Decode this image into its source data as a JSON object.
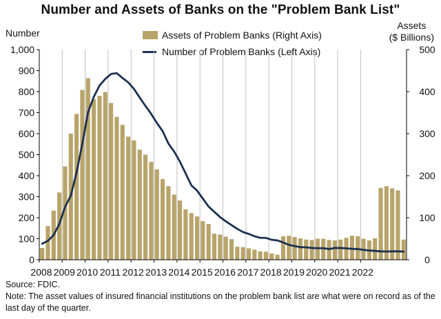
{
  "title": "Number and Assets of Banks on the \"Problem Bank List\"",
  "source": "Source: FDIC.",
  "note": "Note: The asset values of insured financial institutions on the problem bank list are what were on record as of the last day of the quarter.",
  "colors": {
    "bars": "#B8A46A",
    "line": "#1C2F4E",
    "grid": "#BFBFBF",
    "axis": "#000000"
  },
  "chart_data": {
    "type": "bar+line",
    "title": "Number and Assets of Banks on the \"Problem Bank List\"",
    "y_left": {
      "label": "Number",
      "lim": [
        0,
        1000
      ],
      "ticks": [
        "0",
        "100",
        "200",
        "300",
        "400",
        "500",
        "600",
        "700",
        "800",
        "900",
        "1,000"
      ]
    },
    "y_right": {
      "label_line1": "Assets",
      "label_line2": "($ Billions)",
      "lim": [
        0,
        500
      ],
      "ticks": [
        "0",
        "100",
        "200",
        "300",
        "400",
        "500"
      ]
    },
    "x_ticks": [
      "2008",
      "2009",
      "2010",
      "2011",
      "2012",
      "2013",
      "2014",
      "2015",
      "2016",
      "2017",
      "2018",
      "2019",
      "2020",
      "2021",
      "2022"
    ],
    "grid": "vertical at year starts",
    "legend_position": "top-center",
    "series": [
      {
        "name": "Assets of Problem Banks (Right Axis)",
        "type": "bar",
        "axis": "right",
        "values": [
          28,
          80,
          117,
          160,
          222,
          300,
          347,
          404,
          432,
          382,
          390,
          399,
          373,
          340,
          321,
          293,
          284,
          262,
          250,
          233,
          215,
          192,
          175,
          155,
          141,
          120,
          111,
          103,
          92,
          85,
          62,
          60,
          55,
          49,
          31,
          30,
          27,
          24,
          20,
          19,
          15,
          12,
          56,
          57,
          54,
          51,
          48,
          47,
          50,
          50,
          47,
          46,
          48,
          52,
          57,
          56,
          50,
          46,
          51,
          171,
          175,
          170,
          165,
          48
        ]
      },
      {
        "name": "Number of Problem Banks (Left Axis)",
        "type": "line",
        "axis": "left",
        "values": [
          76,
          90,
          117,
          171,
          252,
          305,
          416,
          552,
          702,
          775,
          829,
          860,
          884,
          888,
          865,
          844,
          813,
          772,
          732,
          694,
          651,
          612,
          553,
          515,
          467,
          411,
          354,
          329,
          291,
          253,
          228,
          203,
          183,
          165,
          147,
          132,
          123,
          112,
          104,
          104,
          95,
          92,
          82,
          71,
          65,
          60,
          59,
          56,
          55,
          55,
          51,
          56,
          56,
          54,
          52,
          51,
          47,
          44,
          42,
          40,
          39,
          40,
          40,
          39
        ]
      }
    ]
  }
}
